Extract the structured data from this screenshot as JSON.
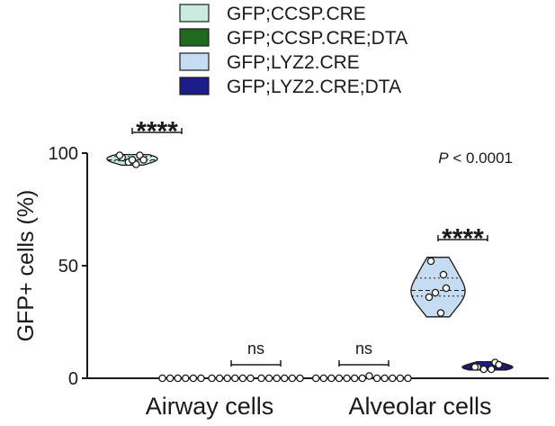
{
  "chart_data": {
    "type": "violin",
    "ylabel": "GFP+ cells (%)",
    "ylim": [
      0,
      100
    ],
    "yticks": [
      "0",
      "50",
      "100"
    ],
    "categories": [
      "Airway cells",
      "Alveolar cells"
    ],
    "series": [
      {
        "name": "GFP;CCSP.CRE",
        "color": "#c9ecdf",
        "stroke": "#1a1a1a",
        "groups": [
          [
            98,
            99,
            96,
            97,
            99,
            95,
            97
          ],
          [
            0,
            0,
            0,
            0,
            0,
            0,
            0
          ]
        ]
      },
      {
        "name": "GFP;CCSP.CRE;DTA",
        "color": "#1e6a1e",
        "stroke": "#1a1a1a",
        "groups": [
          [
            0,
            0,
            0,
            0,
            0,
            0
          ],
          [
            1,
            0,
            0,
            0,
            0,
            0
          ]
        ]
      },
      {
        "name": "GFP;LYZ2.CRE",
        "color": "#c6dcf3",
        "stroke": "#1a1a1a",
        "groups": [
          [
            0,
            0,
            0,
            0,
            0,
            0
          ],
          [
            52,
            46,
            38,
            40,
            36,
            29
          ]
        ]
      },
      {
        "name": "GFP;LYZ2.CRE;DTA",
        "color": "#1c1c8a",
        "stroke": "#1a1a1a",
        "groups": [
          [
            0,
            0,
            0,
            0,
            0,
            0
          ],
          [
            5,
            7,
            4,
            6,
            5,
            4
          ]
        ]
      }
    ],
    "annotations": [
      {
        "text": "****",
        "category": 0,
        "between": [
          0,
          1
        ]
      },
      {
        "text": "ns",
        "category": 0,
        "between": [
          2,
          3
        ]
      },
      {
        "text": "ns",
        "category": 1,
        "between": [
          0,
          1
        ]
      },
      {
        "text": "****",
        "category": 1,
        "between": [
          2,
          3
        ]
      }
    ],
    "pvalue": {
      "italic": "P",
      "rest": " < 0.0001"
    },
    "legend": {
      "placement": "top-center"
    }
  }
}
